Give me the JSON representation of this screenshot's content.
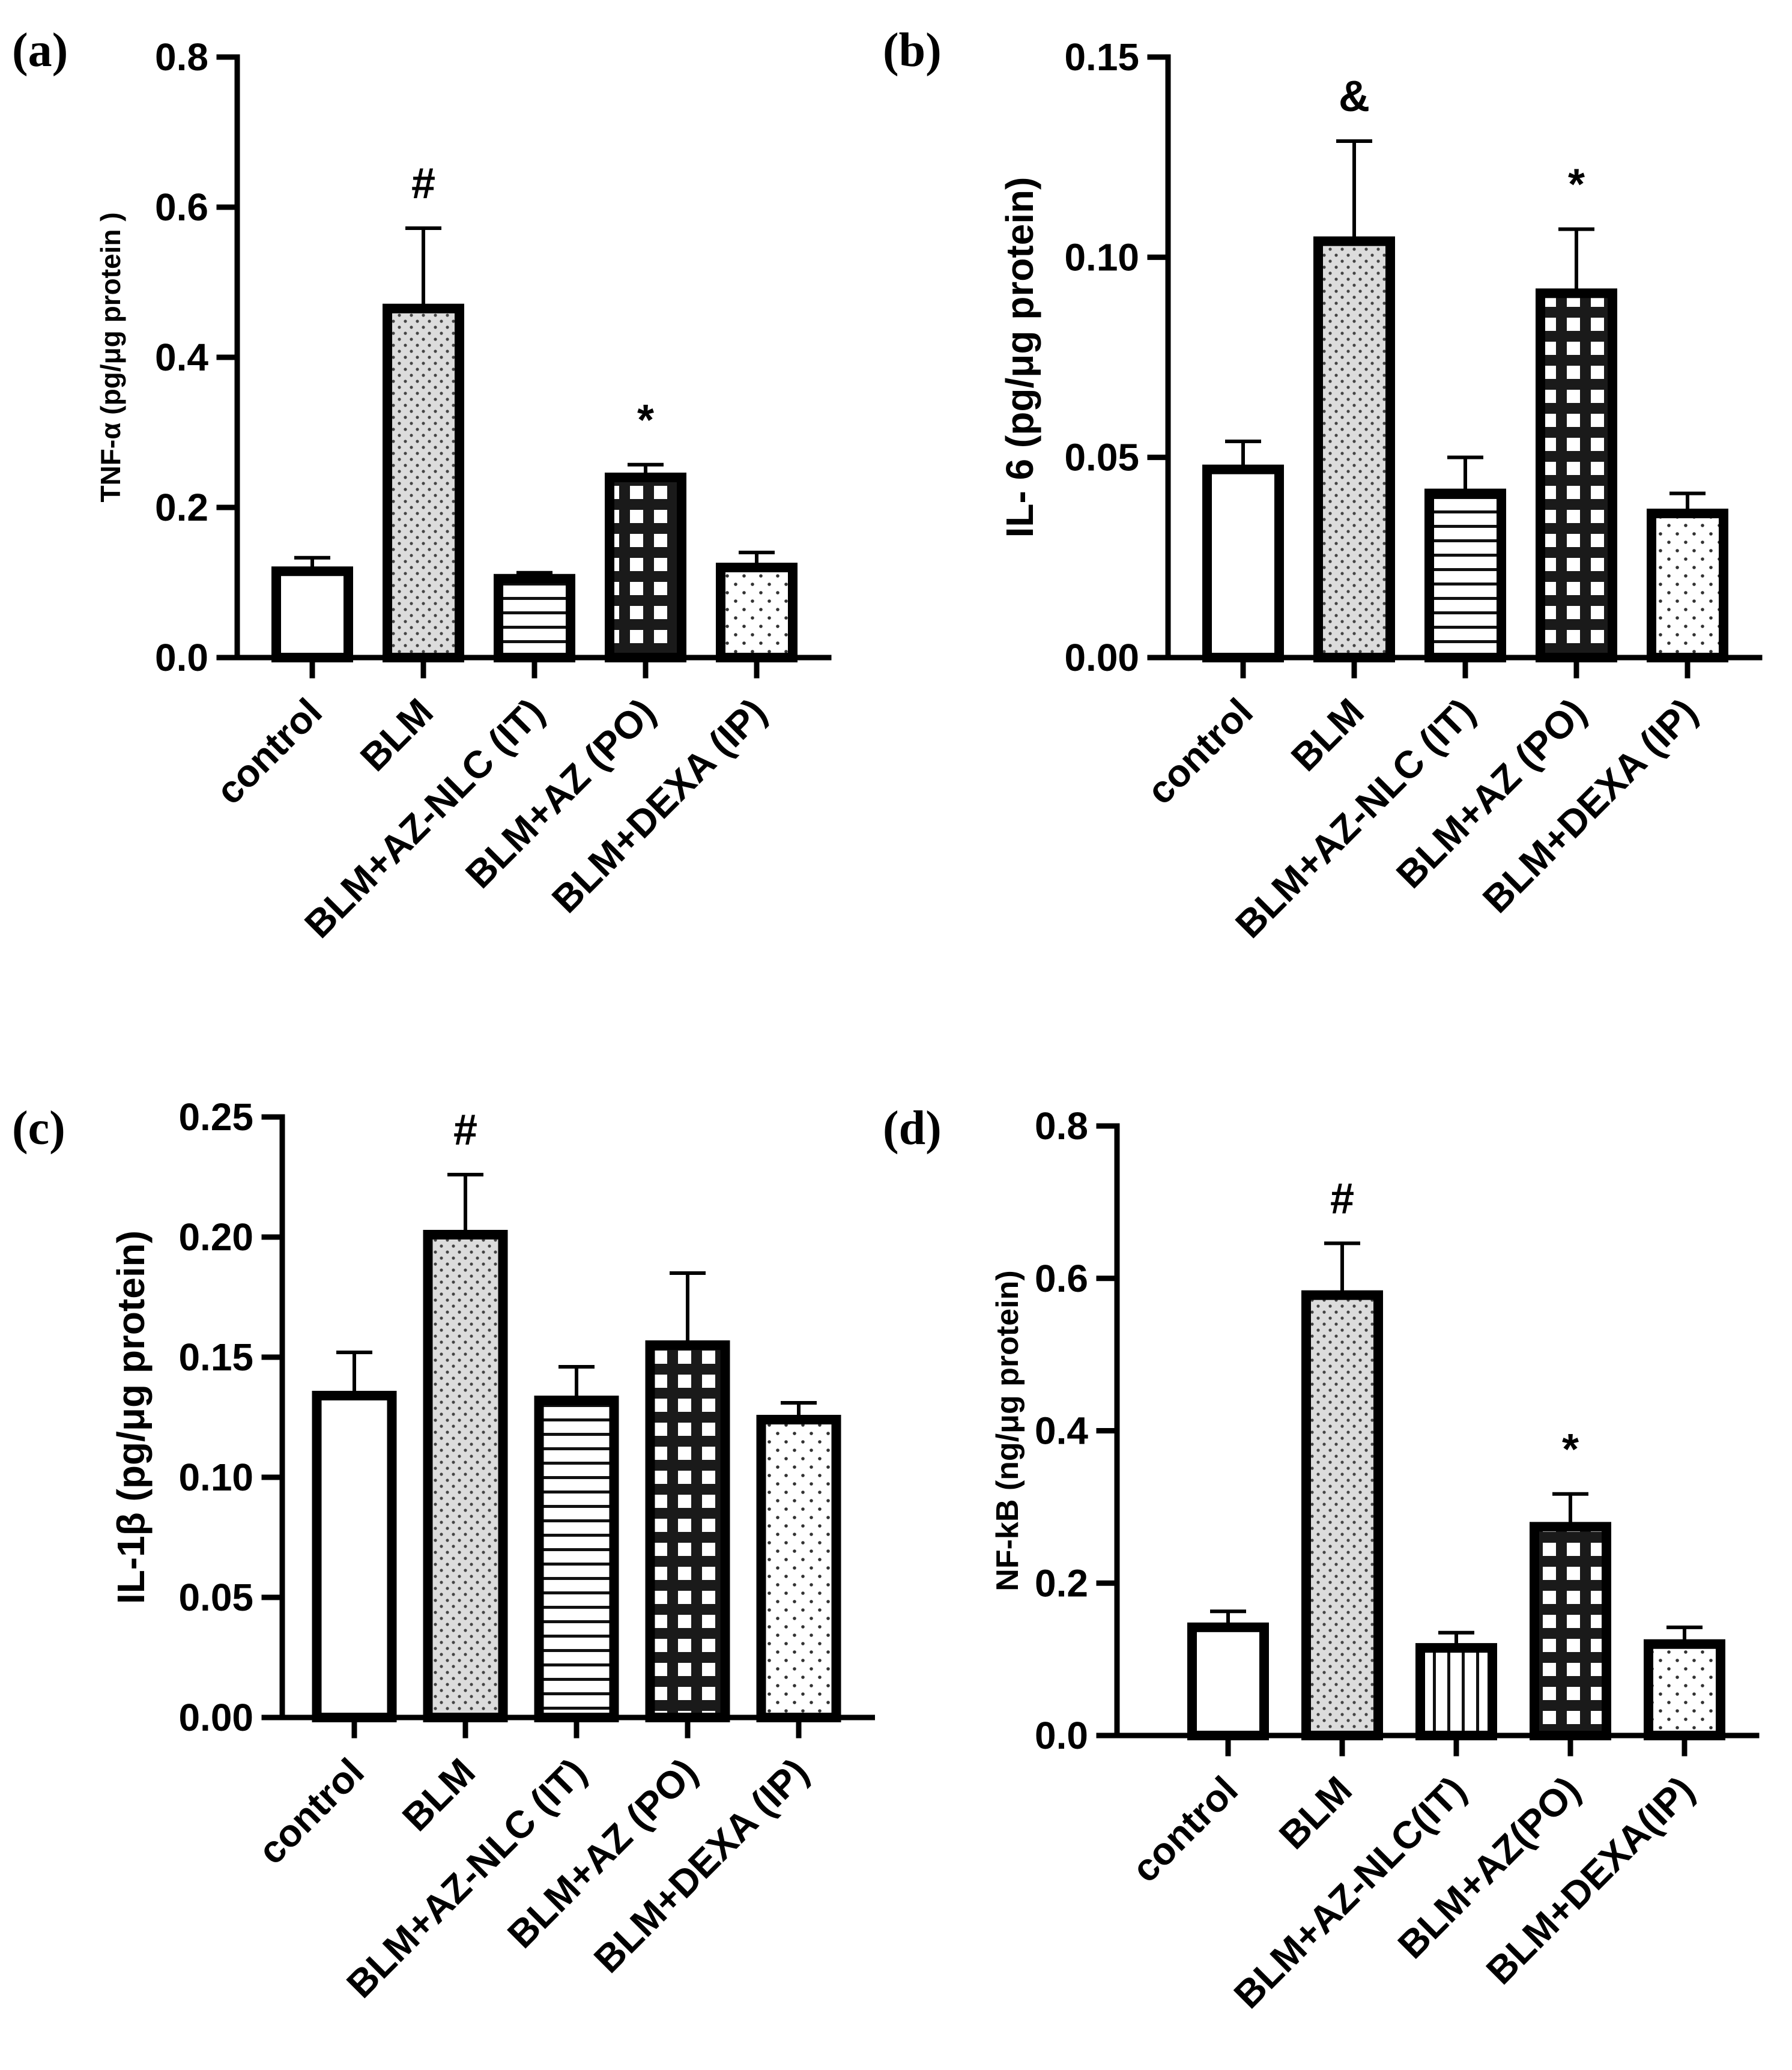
{
  "chart_data": [
    {
      "panel": "(a)",
      "type": "bar",
      "ylabel": "TNF-α (pg/μg protein )",
      "ylim": [
        0,
        0.8
      ],
      "yticks": [
        "0.0",
        "0.2",
        "0.4",
        "0.6",
        "0.8"
      ],
      "tick_values": [
        0,
        0.2,
        0.4,
        0.6,
        0.8
      ],
      "categories": [
        "control",
        "BLM",
        "BLM+AZ-NLC (IT)",
        "BLM+AZ (PO)",
        "BLM+DEXA (IP)"
      ],
      "values": [
        0.115,
        0.465,
        0.105,
        0.24,
        0.12
      ],
      "errors": [
        0.018,
        0.107,
        0.008,
        0.017,
        0.02
      ],
      "patterns": [
        "none",
        "dots",
        "hlines",
        "grid",
        "sparse-dots"
      ],
      "significance": [
        "",
        "#",
        "",
        "*",
        ""
      ]
    },
    {
      "panel": "(b)",
      "type": "bar",
      "ylabel": "IL- 6 (pg/μg protein)",
      "ylim": [
        0,
        0.15
      ],
      "yticks": [
        "0.00",
        "0.05",
        "0.10",
        "0.15"
      ],
      "tick_values": [
        0,
        0.05,
        0.1,
        0.15
      ],
      "categories": [
        "control",
        "BLM",
        "BLM+AZ-NLC (IT)",
        "BLM+AZ (PO)",
        "BLM+DEXA (IP)"
      ],
      "values": [
        0.047,
        0.104,
        0.041,
        0.091,
        0.036
      ],
      "errors": [
        0.007,
        0.025,
        0.009,
        0.016,
        0.005
      ],
      "patterns": [
        "none",
        "dots",
        "hlines",
        "grid",
        "sparse-dots"
      ],
      "significance": [
        "",
        "&",
        "",
        "*",
        ""
      ]
    },
    {
      "panel": "(c)",
      "type": "bar",
      "ylabel": "IL-1β (pg/μg protein)",
      "ylim": [
        0,
        0.25
      ],
      "yticks": [
        "0.00",
        "0.05",
        "0.10",
        "0.15",
        "0.20",
        "0.25"
      ],
      "tick_values": [
        0,
        0.05,
        0.1,
        0.15,
        0.2,
        0.25
      ],
      "categories": [
        "control",
        "BLM",
        "BLM+AZ-NLC (IT)",
        "BLM+AZ (PO)",
        "BLM+DEXA (IP)"
      ],
      "values": [
        0.134,
        0.201,
        0.132,
        0.155,
        0.124
      ],
      "errors": [
        0.018,
        0.025,
        0.014,
        0.03,
        0.007
      ],
      "patterns": [
        "none",
        "dots",
        "hlines",
        "grid",
        "sparse-dots"
      ],
      "significance": [
        "",
        "#",
        "",
        "",
        ""
      ]
    },
    {
      "panel": "(d)",
      "type": "bar",
      "ylabel": "NF-kB (ng/μg protein)",
      "ylim": [
        0,
        0.8
      ],
      "yticks": [
        "0.0",
        "0.2",
        "0.4",
        "0.6",
        "0.8"
      ],
      "tick_values": [
        0,
        0.2,
        0.4,
        0.6,
        0.8
      ],
      "categories": [
        "control",
        "BLM",
        "BLM+AZ-NLC(IT)",
        "BLM+AZ(PO)",
        "BLM+DEXA(IP)"
      ],
      "values": [
        0.142,
        0.578,
        0.115,
        0.274,
        0.12
      ],
      "errors": [
        0.021,
        0.068,
        0.02,
        0.043,
        0.022
      ],
      "patterns": [
        "none",
        "dots",
        "vlines",
        "grid",
        "sparse-dots"
      ],
      "significance": [
        "",
        "#",
        "",
        "*",
        ""
      ]
    }
  ]
}
